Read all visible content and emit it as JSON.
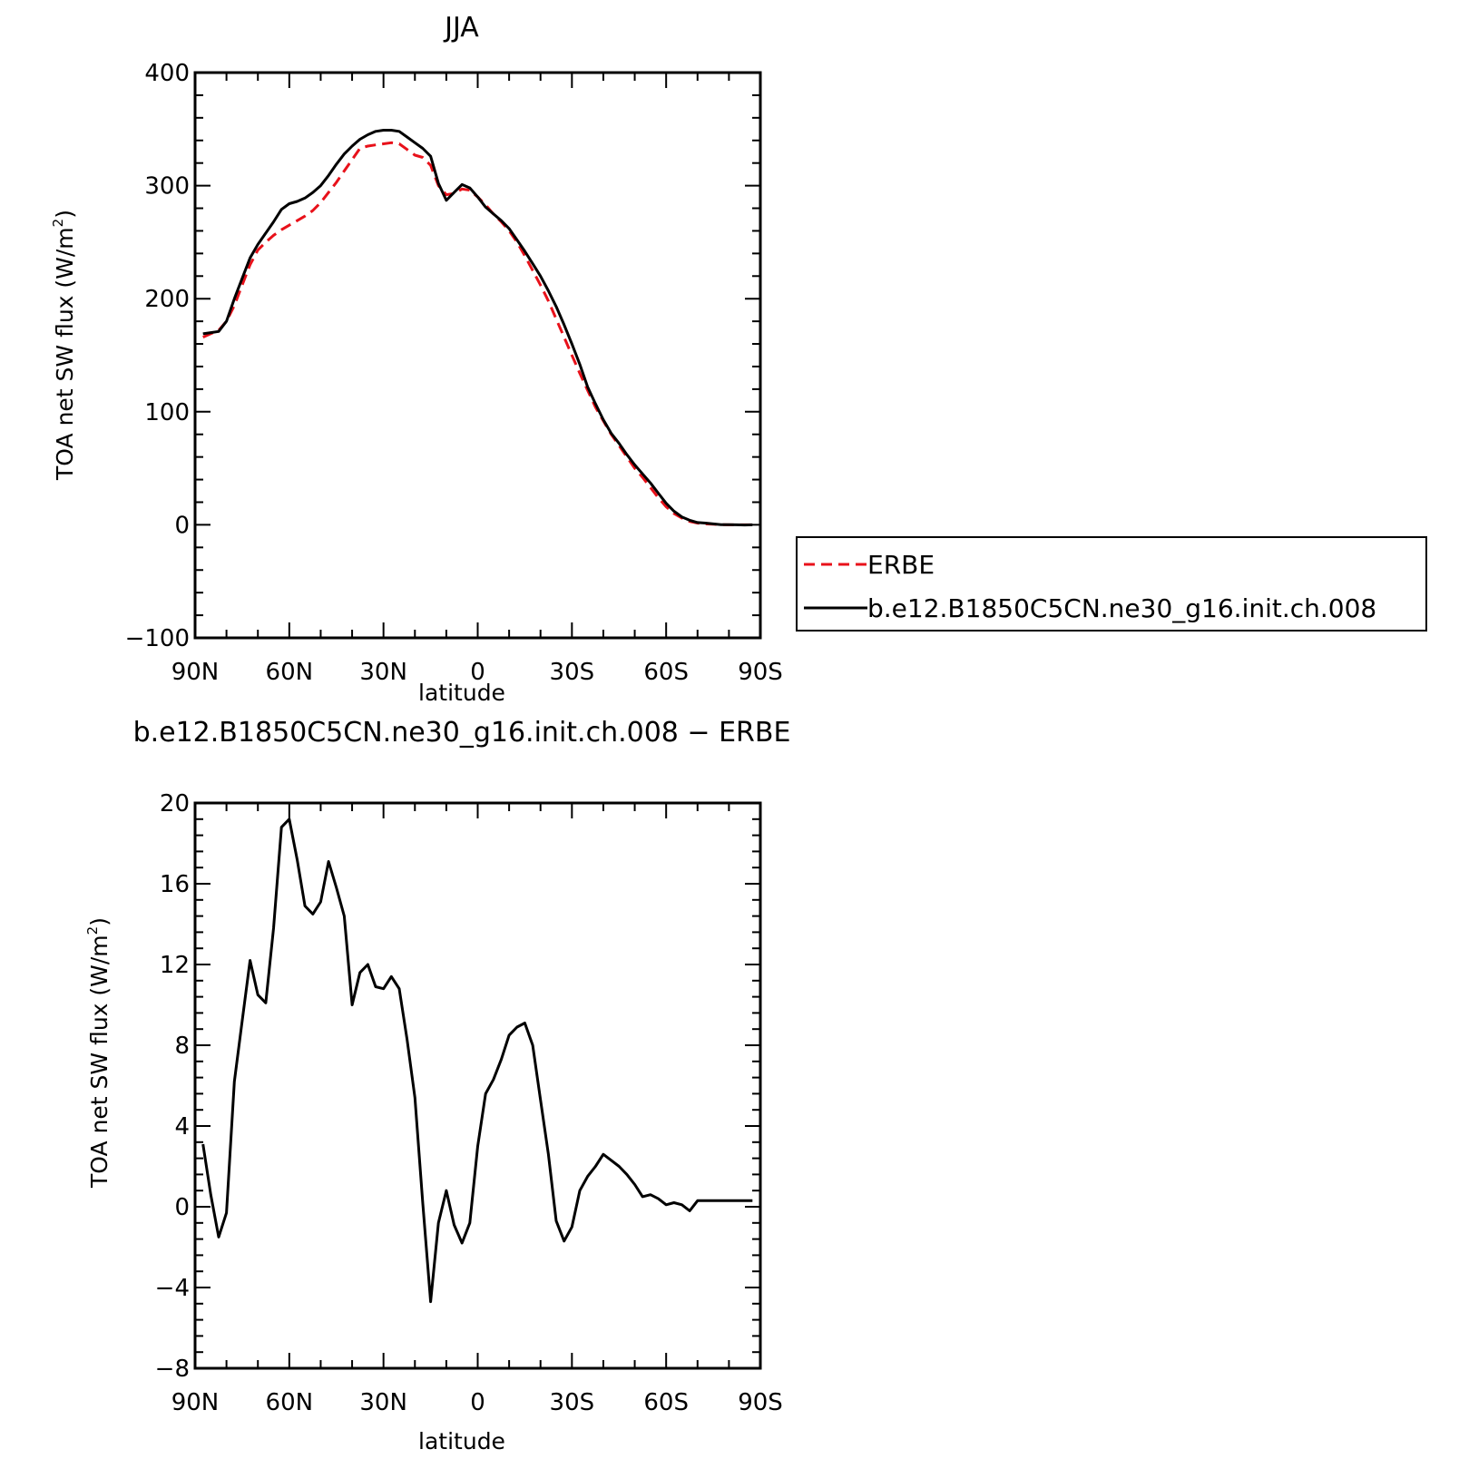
{
  "chart_data": [
    {
      "type": "line",
      "title": "JJA",
      "xlabel": "latitude",
      "ylabel": "TOA net SW flux (W/m",
      "ylabel_sup": "2",
      "ylabel_tail": ")",
      "xlim": [
        90,
        -90
      ],
      "ylim": [
        -100,
        400
      ],
      "x_ticks": [
        {
          "v": 90,
          "label": "90N"
        },
        {
          "v": 60,
          "label": "60N"
        },
        {
          "v": 30,
          "label": "30N"
        },
        {
          "v": 0,
          "label": "0"
        },
        {
          "v": -30,
          "label": "30S"
        },
        {
          "v": -60,
          "label": "60S"
        },
        {
          "v": -90,
          "label": "90S"
        }
      ],
      "y_ticks": [
        {
          "v": 400,
          "label": "400"
        },
        {
          "v": 300,
          "label": "300"
        },
        {
          "v": 200,
          "label": "200"
        },
        {
          "v": 100,
          "label": "100"
        },
        {
          "v": 0,
          "label": "0"
        },
        {
          "v": -100,
          "label": "−100"
        }
      ],
      "legend": {
        "placement": "right, outside plot"
      },
      "series": [
        {
          "name": "ERBE",
          "color": "#e8111a",
          "dash": true,
          "x": [
            87.5,
            85,
            82.5,
            80,
            77.5,
            75,
            72.5,
            70,
            67.5,
            65,
            62.5,
            60,
            57.5,
            55,
            52.5,
            50,
            47.5,
            45,
            42.5,
            40,
            37.5,
            35,
            32.5,
            30,
            27.5,
            25,
            22.5,
            20,
            17.5,
            15,
            12.5,
            10,
            7.5,
            5,
            2.5,
            0,
            -2.5,
            -5,
            -7.5,
            -10,
            -12.5,
            -15,
            -17.5,
            -20,
            -22.5,
            -25,
            -27.5,
            -30,
            -32.5,
            -35,
            -37.5,
            -40,
            -42.5,
            -45,
            -47.5,
            -50,
            -52.5,
            -55,
            -57.5,
            -60,
            -62.5,
            -65,
            -67.5,
            -70,
            -72.5,
            -75,
            -77.5,
            -80,
            -82.5,
            -85,
            -87.5
          ],
          "y": [
            166,
            169,
            172,
            180,
            194,
            212,
            230,
            243,
            250,
            256,
            261,
            265,
            269,
            273,
            278,
            285,
            294,
            303,
            313,
            323,
            333,
            335,
            336,
            337,
            338,
            337,
            332,
            327,
            325,
            318,
            300,
            292,
            293,
            297,
            296,
            290,
            283,
            275,
            268,
            260,
            250,
            238,
            225,
            212,
            198,
            182,
            166,
            150,
            134,
            119,
            104,
            92,
            80,
            70,
            60,
            50,
            42,
            33,
            24,
            16,
            10,
            6,
            3,
            1.5,
            0.8,
            0.5,
            0.2,
            0,
            0,
            0,
            0
          ]
        },
        {
          "name": "b.e12.B1850C5CN.ne30_g16.init.ch.008",
          "color": "#000000",
          "dash": false,
          "x": [
            87.5,
            85,
            82.5,
            80,
            77.5,
            75,
            72.5,
            70,
            67.5,
            65,
            62.5,
            60,
            57.5,
            55,
            52.5,
            50,
            47.5,
            45,
            42.5,
            40,
            37.5,
            35,
            32.5,
            30,
            27.5,
            25,
            22.5,
            20,
            17.5,
            15,
            12.5,
            10,
            7.5,
            5,
            2.5,
            0,
            -2.5,
            -5,
            -7.5,
            -10,
            -12.5,
            -15,
            -17.5,
            -20,
            -22.5,
            -25,
            -27.5,
            -30,
            -32.5,
            -35,
            -37.5,
            -40,
            -42.5,
            -45,
            -47.5,
            -50,
            -52.5,
            -55,
            -57.5,
            -60,
            -62.5,
            -65,
            -67.5,
            -70,
            -72.5,
            -75,
            -77.5,
            -80,
            -82.5,
            -85,
            -87.5
          ],
          "y": [
            169,
            170,
            171,
            180,
            200,
            218,
            236,
            248,
            258,
            268,
            279,
            284,
            286,
            289,
            294,
            300,
            309,
            319,
            328,
            335,
            341,
            345,
            348,
            349,
            349,
            348,
            343,
            338,
            333,
            326,
            302,
            287,
            294,
            301,
            298,
            290,
            281,
            275,
            269,
            262,
            252,
            242,
            231,
            220,
            207,
            193,
            177,
            160,
            142,
            122,
            107,
            93,
            81,
            72,
            62,
            53,
            45,
            37,
            28,
            19,
            12,
            7,
            4,
            2,
            1.5,
            0.8,
            0.2,
            0.1,
            0,
            -0.2,
            0
          ]
        }
      ]
    },
    {
      "type": "line",
      "title": "b.e12.B1850C5CN.ne30_g16.init.ch.008 − ERBE",
      "xlabel": "latitude",
      "ylabel": "TOA net SW flux (W/m",
      "ylabel_sup": "2",
      "ylabel_tail": ")",
      "xlim": [
        90,
        -90
      ],
      "ylim": [
        -8,
        20
      ],
      "x_ticks": [
        {
          "v": 90,
          "label": "90N"
        },
        {
          "v": 60,
          "label": "60N"
        },
        {
          "v": 30,
          "label": "30N"
        },
        {
          "v": 0,
          "label": "0"
        },
        {
          "v": -30,
          "label": "30S"
        },
        {
          "v": -60,
          "label": "60S"
        },
        {
          "v": -90,
          "label": "90S"
        }
      ],
      "y_ticks": [
        {
          "v": 20,
          "label": "20"
        },
        {
          "v": 16,
          "label": "16"
        },
        {
          "v": 12,
          "label": "12"
        },
        {
          "v": 8,
          "label": "8"
        },
        {
          "v": 4,
          "label": "4"
        },
        {
          "v": 0,
          "label": "0"
        },
        {
          "v": -4,
          "label": "−4"
        },
        {
          "v": -8,
          "label": "−8"
        }
      ],
      "series": [
        {
          "color": "#000000",
          "dash": false,
          "x": [
            87.5,
            85,
            82.5,
            80,
            77.5,
            75,
            72.5,
            70,
            67.5,
            65,
            62.5,
            60,
            57.5,
            55,
            52.5,
            50,
            47.5,
            45,
            42.5,
            40,
            37.5,
            35,
            32.5,
            30,
            27.5,
            25,
            22.5,
            20,
            17.5,
            15,
            12.5,
            10,
            7.5,
            5,
            2.5,
            0,
            -2.5,
            -5,
            -7.5,
            -10,
            -12.5,
            -15,
            -17.5,
            -20,
            -22.5,
            -25,
            -27.5,
            -30,
            -32.5,
            -35,
            -37.5,
            -40,
            -42.5,
            -45,
            -47.5,
            -50,
            -52.5,
            -55,
            -57.5,
            -60,
            -62.5,
            -65,
            -67.5,
            -70,
            -72.5,
            -75,
            -77.5,
            -80,
            -82.5,
            -85,
            -87.5
          ],
          "y": [
            3.1,
            0.6,
            -1.5,
            -0.3,
            6.2,
            9.2,
            12.2,
            10.5,
            10.1,
            13.8,
            18.8,
            19.2,
            17.2,
            14.9,
            14.5,
            15.1,
            17.1,
            15.8,
            14.4,
            10.0,
            11.6,
            12.0,
            10.9,
            10.8,
            11.4,
            10.8,
            8.3,
            5.4,
            0.2,
            -4.7,
            -0.8,
            0.8,
            -0.9,
            -1.8,
            -0.8,
            3.0,
            5.6,
            6.3,
            7.3,
            8.5,
            8.9,
            9.1,
            8.0,
            5.3,
            2.6,
            -0.7,
            -1.7,
            -1.0,
            0.8,
            1.5,
            2.0,
            2.6,
            2.3,
            2.0,
            1.6,
            1.1,
            0.5,
            0.6,
            0.4,
            0.1,
            0.2,
            0.1,
            -0.2,
            0.3,
            0.3,
            0.3,
            0.3,
            0.3,
            0.3,
            0.3,
            0.3
          ]
        }
      ]
    }
  ]
}
